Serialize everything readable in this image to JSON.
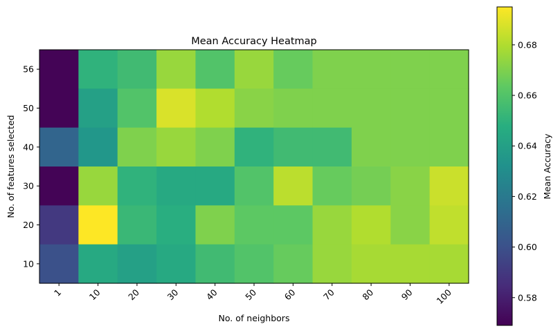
{
  "chart_data": {
    "type": "heatmap",
    "title": "Mean Accuracy Heatmap",
    "xlabel": "No. of neighbors",
    "ylabel": "No. of features selected",
    "colorbar_label": "Mean Accuracy",
    "colormap": "viridis",
    "x_categories": [
      "1",
      "10",
      "20",
      "30",
      "40",
      "50",
      "60",
      "70",
      "80",
      "90",
      "100"
    ],
    "y_categories": [
      "56",
      "50",
      "40",
      "30",
      "20",
      "10"
    ],
    "values": [
      [
        0.57,
        0.65,
        0.655,
        0.675,
        0.66,
        0.675,
        0.665,
        0.67,
        0.67,
        0.67,
        0.67
      ],
      [
        0.57,
        0.64,
        0.66,
        0.688,
        0.68,
        0.672,
        0.67,
        0.67,
        0.67,
        0.67,
        0.67
      ],
      [
        0.61,
        0.635,
        0.67,
        0.675,
        0.67,
        0.65,
        0.655,
        0.655,
        0.67,
        0.67,
        0.67
      ],
      [
        0.57,
        0.675,
        0.65,
        0.645,
        0.645,
        0.66,
        0.682,
        0.665,
        0.668,
        0.672,
        0.685
      ],
      [
        0.59,
        0.695,
        0.653,
        0.648,
        0.67,
        0.663,
        0.663,
        0.675,
        0.68,
        0.672,
        0.683
      ],
      [
        0.6,
        0.645,
        0.64,
        0.645,
        0.655,
        0.66,
        0.665,
        0.675,
        0.678,
        0.678,
        0.678
      ]
    ],
    "vmin": 0.569,
    "vmax": 0.695,
    "colorbar_ticks": [
      0.58,
      0.6,
      0.62,
      0.64,
      0.66,
      0.68
    ],
    "colorbar_tick_labels": [
      "0.58",
      "0.60",
      "0.62",
      "0.64",
      "0.66",
      "0.68"
    ],
    "x_tick_rotation": 45
  }
}
